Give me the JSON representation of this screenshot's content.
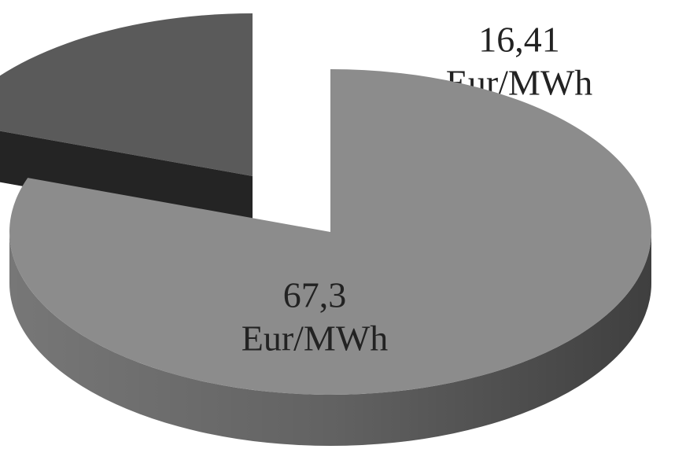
{
  "chart_data": {
    "type": "pie",
    "values": [
      67.3,
      16.41
    ],
    "value_labels": [
      "67,3",
      "16,41"
    ],
    "unit": "Eur/MWh",
    "colors": [
      "#8c8c8c",
      "#5a5a5a"
    ],
    "exploded": 1
  }
}
